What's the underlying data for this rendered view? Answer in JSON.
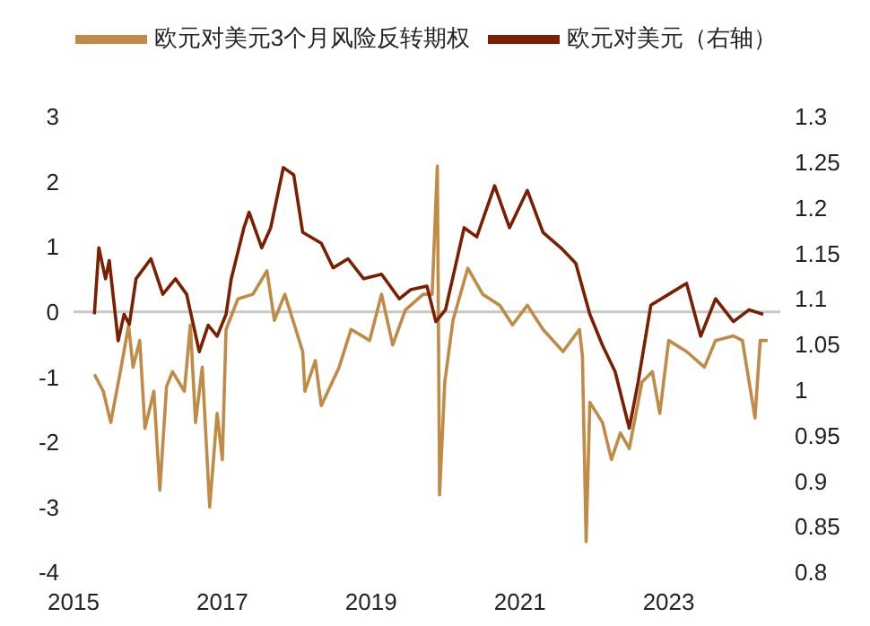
{
  "chart_data": {
    "type": "line",
    "legend": "top",
    "marker": "none",
    "line_style": "solid",
    "grid": false,
    "xlim": [
      2015,
      2024.5
    ],
    "xticks": [
      2015,
      2017,
      2019,
      2021,
      2023
    ],
    "ylim": [
      -4,
      3
    ],
    "yticks": [
      -4,
      -3,
      -2,
      -1,
      0,
      1,
      2,
      3
    ],
    "y2lim": [
      0.8,
      1.3
    ],
    "y2ticks": [
      0.8,
      0.85,
      0.9,
      0.95,
      1,
      1.05,
      1.1,
      1.15,
      1.2,
      1.25,
      1.3
    ],
    "ref_lines": [
      {
        "axis": "y",
        "value": 0,
        "color": "#c8c8c8"
      }
    ],
    "series": [
      {
        "name": "欧元对美元3个月风险反转期权",
        "color": "#c08b46",
        "x": [
          2015.28,
          2015.4,
          2015.5,
          2015.64,
          2015.74,
          2015.8,
          2015.89,
          2015.96,
          2016.08,
          2016.16,
          2016.25,
          2016.33,
          2016.49,
          2016.57,
          2016.64,
          2016.73,
          2016.83,
          2016.93,
          2017.0,
          2017.05,
          2017.21,
          2017.41,
          2017.6,
          2017.7,
          2017.84,
          2018.08,
          2018.11,
          2018.25,
          2018.33,
          2018.57,
          2018.73,
          2018.98,
          2019.14,
          2019.29,
          2019.46,
          2019.7,
          2019.82,
          2019.89,
          2019.92,
          2019.99,
          2020.1,
          2020.3,
          2020.5,
          2020.73,
          2020.9,
          2021.1,
          2021.31,
          2021.58,
          2021.8,
          2021.84,
          2021.89,
          2021.94,
          2022.11,
          2022.23,
          2022.35,
          2022.47,
          2022.64,
          2022.78,
          2022.88,
          2023.0,
          2023.24,
          2023.48,
          2023.63,
          2023.87,
          2023.99,
          2024.16,
          2024.23,
          2024.33
        ],
        "values": [
          -0.96,
          -1.22,
          -1.7,
          -0.85,
          -0.21,
          -0.85,
          -0.44,
          -1.79,
          -1.22,
          -2.74,
          -1.15,
          -0.92,
          -1.22,
          -0.2,
          -1.7,
          -0.85,
          -3.0,
          -1.56,
          -2.27,
          -0.27,
          0.2,
          0.27,
          0.63,
          -0.13,
          0.27,
          -0.61,
          -1.22,
          -0.75,
          -1.44,
          -0.85,
          -0.27,
          -0.44,
          0.27,
          -0.51,
          0.03,
          0.27,
          0.27,
          2.24,
          -2.81,
          -1.08,
          -0.13,
          0.67,
          0.27,
          0.1,
          -0.2,
          0.1,
          -0.27,
          -0.61,
          -0.27,
          -0.68,
          -3.53,
          -1.39,
          -1.7,
          -2.27,
          -1.86,
          -2.1,
          -1.08,
          -0.92,
          -1.56,
          -0.44,
          -0.61,
          -0.85,
          -0.44,
          -0.37,
          -0.44,
          -1.63,
          -0.44,
          -0.44
        ]
      },
      {
        "name": "欧元对美元（右轴）",
        "color": "#7b1f00",
        "axis": "y2",
        "x": [
          2015.28,
          2015.34,
          2015.43,
          2015.48,
          2015.6,
          2015.68,
          2015.75,
          2015.84,
          2016.04,
          2016.2,
          2016.37,
          2016.52,
          2016.69,
          2016.81,
          2016.93,
          2017.05,
          2017.12,
          2017.29,
          2017.36,
          2017.53,
          2017.65,
          2017.82,
          2017.96,
          2018.08,
          2018.33,
          2018.49,
          2018.69,
          2018.9,
          2019.14,
          2019.38,
          2019.53,
          2019.75,
          2019.87,
          2020.0,
          2020.25,
          2020.42,
          2020.66,
          2020.86,
          2021.1,
          2021.31,
          2021.55,
          2021.75,
          2021.94,
          2022.11,
          2022.28,
          2022.47,
          2022.59,
          2022.76,
          2023.0,
          2023.24,
          2023.43,
          2023.63,
          2023.87,
          2024.08,
          2024.27
        ],
        "values": [
          1.083,
          1.156,
          1.122,
          1.142,
          1.054,
          1.083,
          1.072,
          1.122,
          1.144,
          1.105,
          1.122,
          1.105,
          1.042,
          1.071,
          1.059,
          1.083,
          1.122,
          1.178,
          1.195,
          1.156,
          1.178,
          1.244,
          1.236,
          1.173,
          1.161,
          1.134,
          1.144,
          1.122,
          1.127,
          1.1,
          1.11,
          1.114,
          1.075,
          1.088,
          1.178,
          1.168,
          1.224,
          1.178,
          1.219,
          1.173,
          1.156,
          1.139,
          1.083,
          1.049,
          1.02,
          0.958,
          1.009,
          1.093,
          1.105,
          1.117,
          1.059,
          1.1,
          1.075,
          1.088,
          1.083
        ]
      }
    ]
  }
}
